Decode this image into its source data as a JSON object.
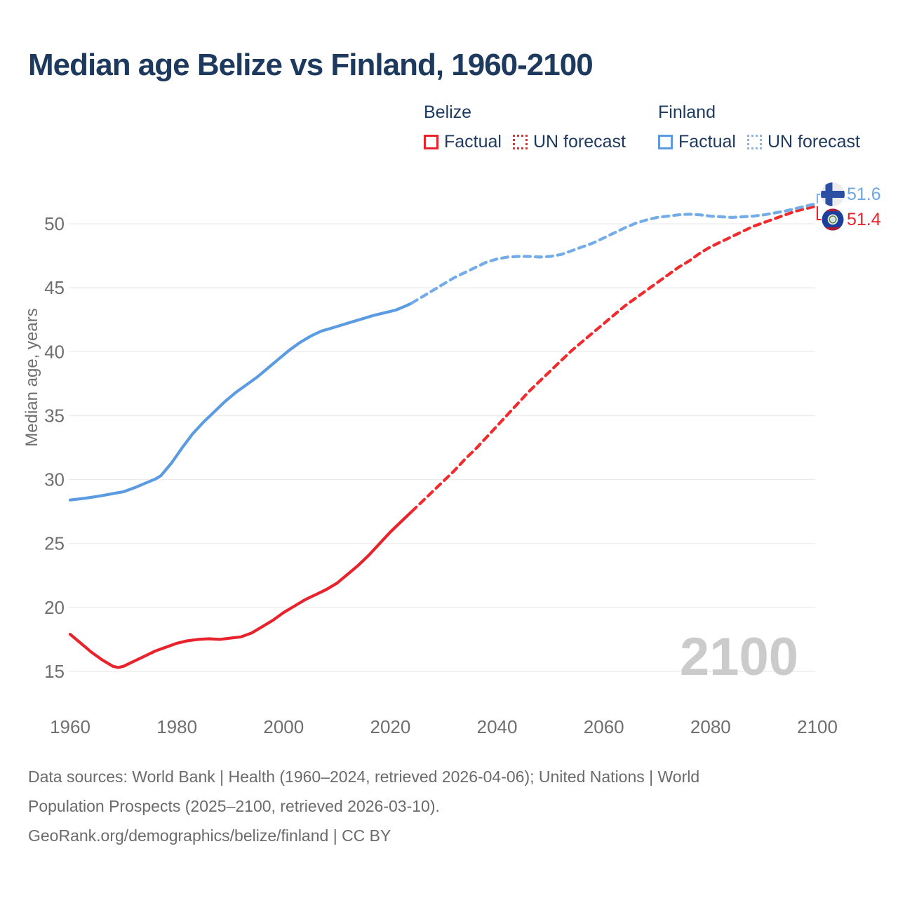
{
  "title": "Median age Belize vs Finland, 1960-2100",
  "legend": {
    "belize": {
      "label": "Belize",
      "factual": "Factual",
      "forecast": "UN forecast"
    },
    "finland": {
      "label": "Finland",
      "factual": "Factual",
      "forecast": "UN forecast"
    }
  },
  "end_labels": {
    "finland": {
      "value": "51.6",
      "icon": "finland-flag-icon"
    },
    "belize": {
      "value": "51.4",
      "icon": "belize-flag-icon"
    }
  },
  "watermark": "2100",
  "footer": {
    "line1": "Data sources: World Bank | Health (1960–2024, retrieved 2026-04-06); United Nations | World",
    "line2": "Population Prospects (2025–2100, retrieved 2026-03-10).",
    "line3": "GeoRank.org/demographics/belize/finland | CC BY"
  },
  "colors": {
    "title_text": "#1d3a5e",
    "axis_text": "#6f6f6f",
    "gridline": "#ececec",
    "watermark": "#cbcbcb",
    "belize_factual": "#e8232b",
    "belize_forecast": "#ef2b2d",
    "finland_factual": "#5b9be1",
    "finland_forecast": "#74ace9"
  },
  "chart_data": {
    "type": "line",
    "title": "Median age Belize vs Finland, 1960-2100",
    "xlabel": "",
    "ylabel": "Median age, years",
    "x_ticks": [
      1960,
      1980,
      2000,
      2020,
      2040,
      2060,
      2080,
      2100
    ],
    "y_ticks": [
      15,
      20,
      25,
      30,
      35,
      40,
      45,
      50
    ],
    "xlim": [
      1960,
      2100
    ],
    "ylim": [
      15,
      52
    ],
    "grid": "horizontal-only",
    "legend_position": "top-right",
    "series": [
      {
        "id": "belize-factual",
        "name": "Belize Factual",
        "country": "Belize",
        "line_style": "solid",
        "color": "#e8232b",
        "points": [
          [
            1960,
            17.9
          ],
          [
            1962,
            17.2
          ],
          [
            1964,
            16.5
          ],
          [
            1966,
            15.9
          ],
          [
            1968,
            15.4
          ],
          [
            1969,
            15.3
          ],
          [
            1970,
            15.4
          ],
          [
            1972,
            15.8
          ],
          [
            1974,
            16.2
          ],
          [
            1976,
            16.6
          ],
          [
            1978,
            16.9
          ],
          [
            1980,
            17.2
          ],
          [
            1982,
            17.4
          ],
          [
            1984,
            17.5
          ],
          [
            1986,
            17.55
          ],
          [
            1988,
            17.5
          ],
          [
            1990,
            17.6
          ],
          [
            1992,
            17.7
          ],
          [
            1994,
            18.0
          ],
          [
            1996,
            18.5
          ],
          [
            1998,
            19.0
          ],
          [
            2000,
            19.6
          ],
          [
            2002,
            20.1
          ],
          [
            2004,
            20.6
          ],
          [
            2006,
            21.0
          ],
          [
            2008,
            21.4
          ],
          [
            2010,
            21.9
          ],
          [
            2012,
            22.6
          ],
          [
            2014,
            23.3
          ],
          [
            2016,
            24.1
          ],
          [
            2018,
            25.0
          ],
          [
            2020,
            25.9
          ],
          [
            2022,
            26.7
          ],
          [
            2024,
            27.5
          ]
        ]
      },
      {
        "id": "belize-forecast",
        "name": "Belize UN forecast",
        "country": "Belize",
        "line_style": "dashed",
        "color": "#ef2b2d",
        "points": [
          [
            2024,
            27.5
          ],
          [
            2026,
            28.3
          ],
          [
            2028,
            29.1
          ],
          [
            2030,
            29.9
          ],
          [
            2032,
            30.7
          ],
          [
            2034,
            31.6
          ],
          [
            2036,
            32.4
          ],
          [
            2038,
            33.3
          ],
          [
            2040,
            34.2
          ],
          [
            2042,
            35.1
          ],
          [
            2044,
            36.0
          ],
          [
            2046,
            36.9
          ],
          [
            2048,
            37.7
          ],
          [
            2050,
            38.5
          ],
          [
            2052,
            39.3
          ],
          [
            2054,
            40.1
          ],
          [
            2056,
            40.8
          ],
          [
            2058,
            41.5
          ],
          [
            2060,
            42.2
          ],
          [
            2062,
            42.9
          ],
          [
            2064,
            43.6
          ],
          [
            2066,
            44.2
          ],
          [
            2068,
            44.8
          ],
          [
            2070,
            45.4
          ],
          [
            2072,
            46.0
          ],
          [
            2074,
            46.6
          ],
          [
            2076,
            47.1
          ],
          [
            2078,
            47.7
          ],
          [
            2080,
            48.2
          ],
          [
            2082,
            48.6
          ],
          [
            2084,
            49.0
          ],
          [
            2086,
            49.4
          ],
          [
            2088,
            49.8
          ],
          [
            2090,
            50.1
          ],
          [
            2092,
            50.4
          ],
          [
            2094,
            50.7
          ],
          [
            2096,
            51.0
          ],
          [
            2098,
            51.2
          ],
          [
            2100,
            51.4
          ]
        ]
      },
      {
        "id": "finland-factual",
        "name": "Finland Factual",
        "country": "Finland",
        "line_style": "solid",
        "color": "#5b9be1",
        "points": [
          [
            1960,
            28.4
          ],
          [
            1963,
            28.55
          ],
          [
            1966,
            28.75
          ],
          [
            1968,
            28.9
          ],
          [
            1970,
            29.05
          ],
          [
            1972,
            29.35
          ],
          [
            1974,
            29.7
          ],
          [
            1976,
            30.05
          ],
          [
            1977,
            30.3
          ],
          [
            1979,
            31.3
          ],
          [
            1981,
            32.5
          ],
          [
            1983,
            33.6
          ],
          [
            1985,
            34.5
          ],
          [
            1987,
            35.3
          ],
          [
            1989,
            36.1
          ],
          [
            1991,
            36.8
          ],
          [
            1993,
            37.4
          ],
          [
            1995,
            38.0
          ],
          [
            1997,
            38.7
          ],
          [
            1999,
            39.4
          ],
          [
            2001,
            40.1
          ],
          [
            2003,
            40.7
          ],
          [
            2005,
            41.2
          ],
          [
            2007,
            41.6
          ],
          [
            2009,
            41.85
          ],
          [
            2011,
            42.1
          ],
          [
            2013,
            42.35
          ],
          [
            2015,
            42.6
          ],
          [
            2017,
            42.85
          ],
          [
            2019,
            43.05
          ],
          [
            2021,
            43.25
          ],
          [
            2023,
            43.6
          ],
          [
            2024,
            43.8
          ]
        ]
      },
      {
        "id": "finland-forecast",
        "name": "Finland UN forecast",
        "country": "Finland",
        "line_style": "dashed",
        "color": "#74ace9",
        "points": [
          [
            2024,
            43.8
          ],
          [
            2026,
            44.3
          ],
          [
            2028,
            44.8
          ],
          [
            2030,
            45.3
          ],
          [
            2032,
            45.8
          ],
          [
            2034,
            46.2
          ],
          [
            2036,
            46.6
          ],
          [
            2038,
            47.0
          ],
          [
            2040,
            47.25
          ],
          [
            2042,
            47.4
          ],
          [
            2044,
            47.45
          ],
          [
            2046,
            47.45
          ],
          [
            2048,
            47.4
          ],
          [
            2050,
            47.45
          ],
          [
            2052,
            47.6
          ],
          [
            2054,
            47.9
          ],
          [
            2056,
            48.2
          ],
          [
            2058,
            48.5
          ],
          [
            2060,
            48.9
          ],
          [
            2062,
            49.3
          ],
          [
            2064,
            49.7
          ],
          [
            2066,
            50.05
          ],
          [
            2068,
            50.3
          ],
          [
            2070,
            50.5
          ],
          [
            2072,
            50.6
          ],
          [
            2074,
            50.7
          ],
          [
            2076,
            50.75
          ],
          [
            2078,
            50.7
          ],
          [
            2080,
            50.6
          ],
          [
            2082,
            50.55
          ],
          [
            2084,
            50.5
          ],
          [
            2086,
            50.55
          ],
          [
            2088,
            50.6
          ],
          [
            2090,
            50.7
          ],
          [
            2092,
            50.85
          ],
          [
            2094,
            51.0
          ],
          [
            2096,
            51.2
          ],
          [
            2098,
            51.4
          ],
          [
            2100,
            51.6
          ]
        ]
      }
    ],
    "end_values": {
      "finland": 51.6,
      "belize": 51.4
    },
    "watermark": "2100"
  }
}
